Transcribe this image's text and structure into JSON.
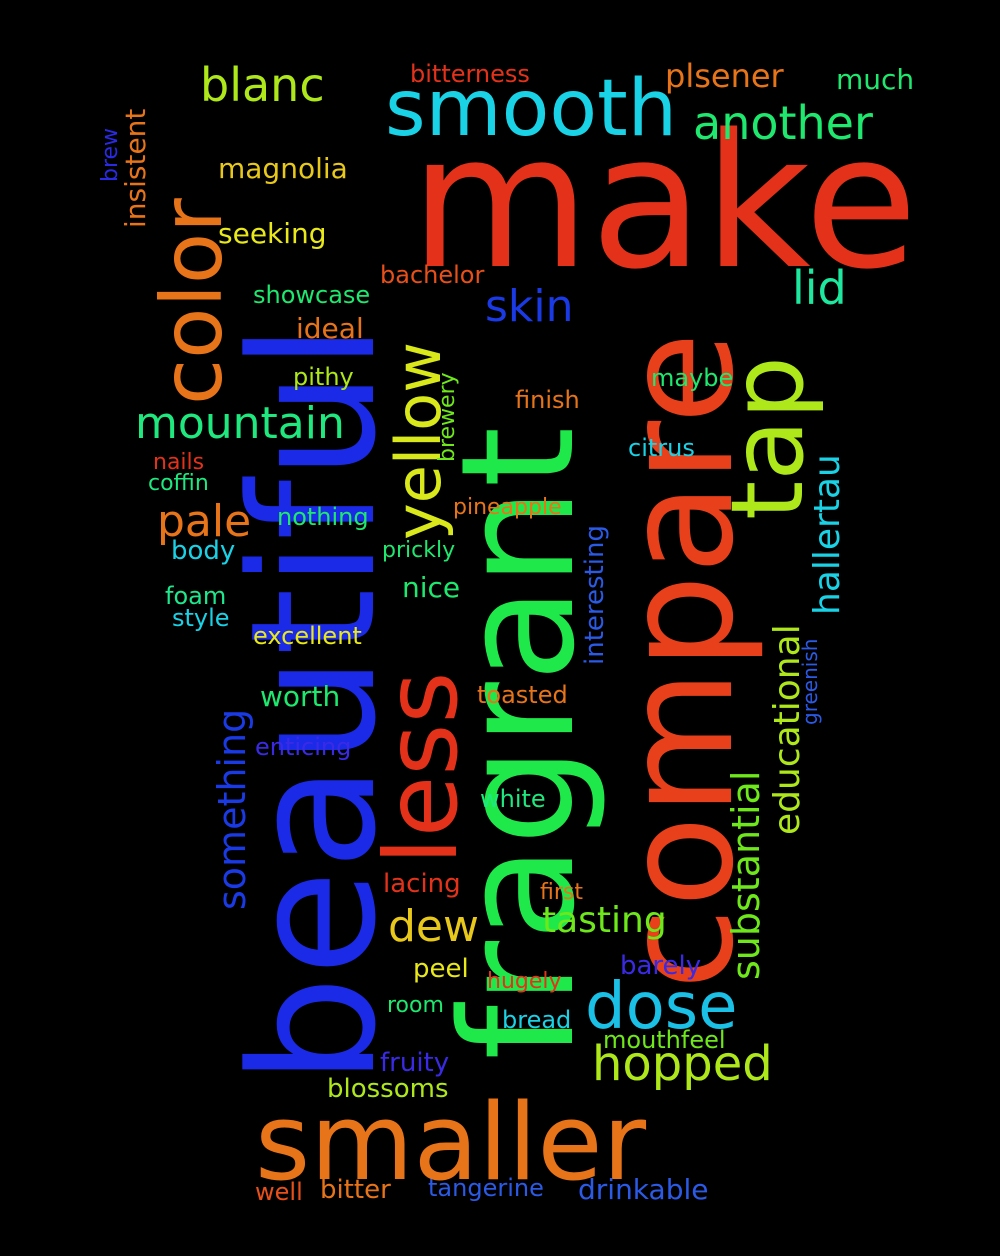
{
  "background_color": "#000000",
  "words": [
    {
      "text": "make",
      "color": "#e4321a"
    },
    {
      "text": "beautiful",
      "color": "#1a2ae6"
    },
    {
      "text": "fragrant",
      "color": "#1ee84a"
    },
    {
      "text": "compare",
      "color": "#e8401a"
    },
    {
      "text": "smaller",
      "color": "#e8741a"
    },
    {
      "text": "smooth",
      "color": "#1ad2e6"
    },
    {
      "text": "less",
      "color": "#e4321a"
    },
    {
      "text": "color",
      "color": "#e8741a"
    },
    {
      "text": "tap",
      "color": "#aee81a"
    },
    {
      "text": "yellow",
      "color": "#d8e81a"
    },
    {
      "text": "dose",
      "color": "#1ac0e6"
    },
    {
      "text": "hopped",
      "color": "#aee81a"
    },
    {
      "text": "blanc",
      "color": "#aee81a"
    },
    {
      "text": "another",
      "color": "#1ee86e"
    },
    {
      "text": "mountain",
      "color": "#1ee87e"
    },
    {
      "text": "skin",
      "color": "#1a3ae6"
    },
    {
      "text": "pale",
      "color": "#e8741a"
    },
    {
      "text": "dew",
      "color": "#e8c81a"
    },
    {
      "text": "tasting",
      "color": "#6ee81a"
    },
    {
      "text": "lid",
      "color": "#1ee8a0"
    },
    {
      "text": "plsener",
      "color": "#e8741a"
    },
    {
      "text": "something",
      "color": "#1a3ae6"
    },
    {
      "text": "substantial",
      "color": "#6ee81a"
    },
    {
      "text": "educational",
      "color": "#aee81a"
    },
    {
      "text": "hallertau",
      "color": "#1ad2e6"
    },
    {
      "text": "much",
      "color": "#1ee86e"
    },
    {
      "text": "bitterness",
      "color": "#e4321a"
    },
    {
      "text": "insistent",
      "color": "#e8741a"
    },
    {
      "text": "brew",
      "color": "#2a2ae6"
    },
    {
      "text": "magnolia",
      "color": "#e8c81a"
    },
    {
      "text": "seeking",
      "color": "#e8e81a"
    },
    {
      "text": "bachelor",
      "color": "#e8501a"
    },
    {
      "text": "showcase",
      "color": "#1ee86e"
    },
    {
      "text": "ideal",
      "color": "#e8741a"
    },
    {
      "text": "pithy",
      "color": "#aee81a"
    },
    {
      "text": "brewery",
      "color": "#6ee81a"
    },
    {
      "text": "finish",
      "color": "#e8741a"
    },
    {
      "text": "maybe",
      "color": "#1ee86e"
    },
    {
      "text": "citrus",
      "color": "#1ad2e6"
    },
    {
      "text": "nails",
      "color": "#e4321a"
    },
    {
      "text": "coffin",
      "color": "#1ee87e"
    },
    {
      "text": "interesting",
      "color": "#2a5ae6"
    },
    {
      "text": "nothing",
      "color": "#1ee86e"
    },
    {
      "text": "pineapple",
      "color": "#e8741a"
    },
    {
      "text": "body",
      "color": "#1ad2e6"
    },
    {
      "text": "prickly",
      "color": "#1ee86e"
    },
    {
      "text": "nice",
      "color": "#1ee86e"
    },
    {
      "text": "foam",
      "color": "#1ee88e"
    },
    {
      "text": "style",
      "color": "#1ad2e6"
    },
    {
      "text": "excellent",
      "color": "#e8e81a"
    },
    {
      "text": "greenish",
      "color": "#2a5ae6"
    },
    {
      "text": "worth",
      "color": "#1ee86e"
    },
    {
      "text": "toasted",
      "color": "#e8741a"
    },
    {
      "text": "enticing",
      "color": "#3a2ae6"
    },
    {
      "text": "white",
      "color": "#1ee87e"
    },
    {
      "text": "lacing",
      "color": "#e4321a"
    },
    {
      "text": "first",
      "color": "#e8741a"
    },
    {
      "text": "barely",
      "color": "#3a2ae6"
    },
    {
      "text": "peel",
      "color": "#e8e81a"
    },
    {
      "text": "hugely",
      "color": "#e4321a"
    },
    {
      "text": "room",
      "color": "#1ee86e"
    },
    {
      "text": "bread",
      "color": "#1ad2e6"
    },
    {
      "text": "mouthfeel",
      "color": "#6ee81a"
    },
    {
      "text": "fruity",
      "color": "#3a2ae6"
    },
    {
      "text": "blossoms",
      "color": "#aee81a"
    },
    {
      "text": "well",
      "color": "#e8501a"
    },
    {
      "text": "bitter",
      "color": "#e8741a"
    },
    {
      "text": "tangerine",
      "color": "#2a5ae6"
    },
    {
      "text": "drinkable",
      "color": "#2a5ae6"
    }
  ]
}
